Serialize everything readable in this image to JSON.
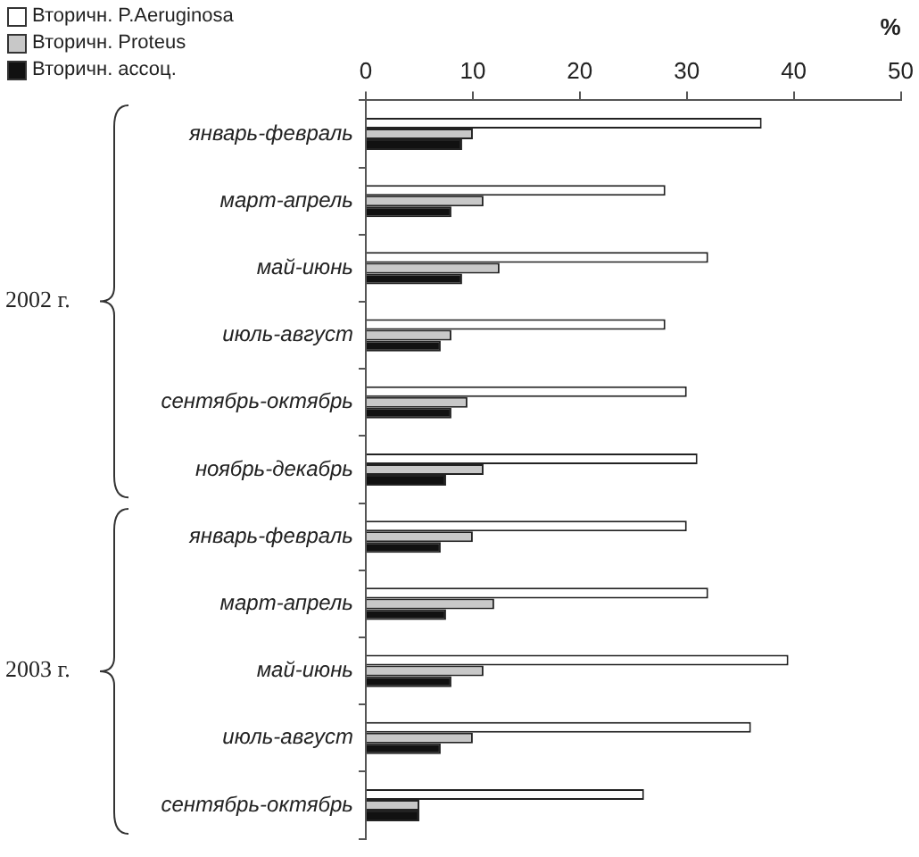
{
  "chart_data": {
    "type": "bar",
    "orientation": "horizontal",
    "xlabel": "%",
    "categories": [
      "январь-февраль",
      "март-апрель",
      "май-июнь",
      "июль-август",
      "сентябрь-октябрь",
      "ноябрь-декабрь",
      "январь-февраль",
      "март-апрель",
      "май-июнь",
      "июль-август",
      "сентябрь-октябрь"
    ],
    "series": [
      {
        "name": "Вторичн. P.Aeruginosa",
        "color": "#ffffff",
        "values": [
          37,
          28,
          32,
          28,
          30,
          31,
          30,
          32,
          39.5,
          36,
          26
        ]
      },
      {
        "name": "Вторичн. Proteus",
        "color": "#c8c8c8",
        "values": [
          10,
          11,
          12.5,
          8,
          9.5,
          11,
          10,
          12,
          11,
          10,
          5
        ]
      },
      {
        "name": "Вторичн. ассоц.",
        "color": "#111111",
        "values": [
          9,
          8,
          9,
          7,
          8,
          7.5,
          7,
          7.5,
          8,
          7,
          5
        ]
      }
    ],
    "xlim": [
      0,
      50
    ],
    "xticks": [
      0,
      10,
      20,
      30,
      40,
      50
    ],
    "grid": false,
    "legend": "top left",
    "annotations": [
      "2002 г.",
      "2003 г."
    ]
  }
}
